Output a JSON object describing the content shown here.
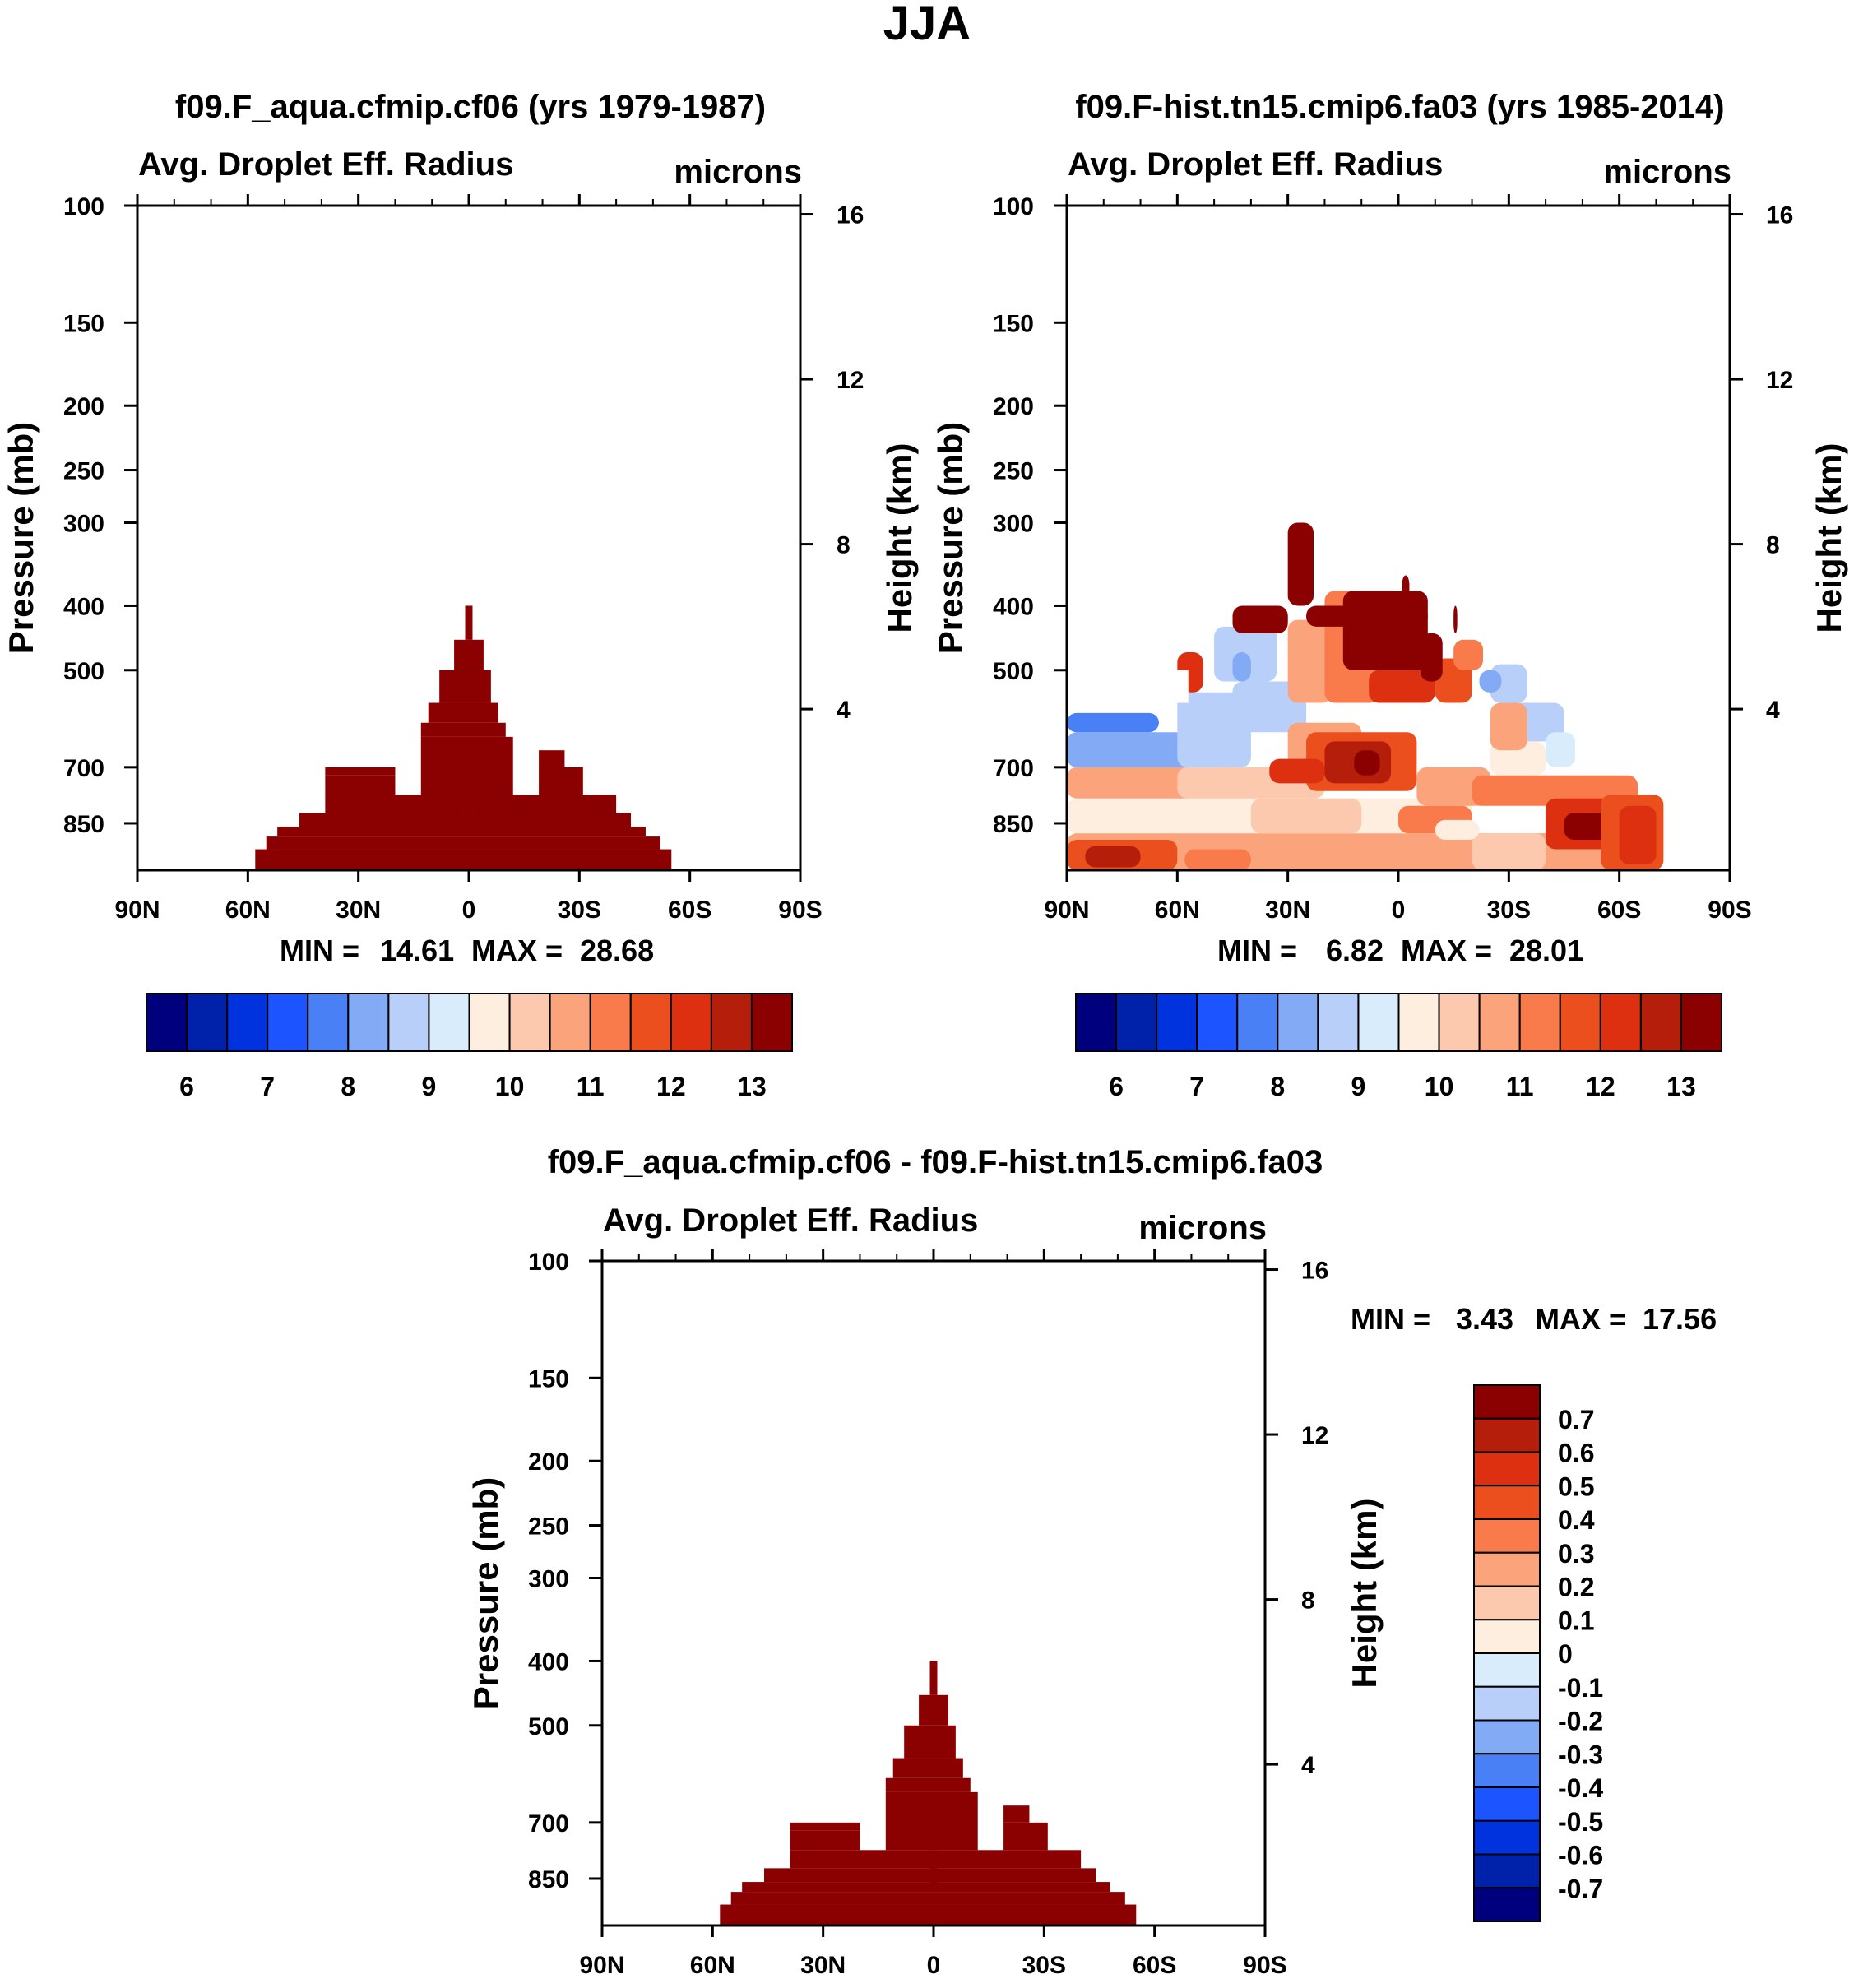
{
  "figure_title": "JJA",
  "colors": {
    "abs_scale": [
      "#00007f",
      "#0022aa",
      "#0033dd",
      "#1c55ff",
      "#4a80f5",
      "#82aaf5",
      "#b8cffa",
      "#d9ecfb",
      "#fdeedf",
      "#fcc9ae",
      "#fba47c",
      "#f97a4a",
      "#ec4f1e",
      "#dd3010",
      "#b51e0a",
      "#8b0000"
    ],
    "diff_scale": [
      "#00007f",
      "#0022aa",
      "#0033dd",
      "#1c55ff",
      "#4a80f5",
      "#82aaf5",
      "#b8cffa",
      "#d9ecfb",
      "#fdeedf",
      "#fcc9ae",
      "#fba47c",
      "#f97a4a",
      "#ec4f1e",
      "#dd3010",
      "#b51e0a",
      "#8b0000"
    ],
    "fill_dark": "#8b0000"
  },
  "chart_data": [
    {
      "id": "panel1",
      "type": "heatmap",
      "title": "f09.F_aqua.cfmip.cf06 (yrs 1979-1987)",
      "left_label": "Avg. Droplet Eff. Radius",
      "right_label": "microns",
      "ylabel": "Pressure (mb)",
      "ylabel_right": "Height (km)",
      "x_ticks": [
        "90N",
        "60N",
        "30N",
        "0",
        "30S",
        "60S",
        "90S"
      ],
      "x_tick_values": [
        90,
        60,
        30,
        0,
        -30,
        -60,
        -90
      ],
      "y_ticks": [
        100,
        150,
        200,
        250,
        300,
        400,
        500,
        700,
        850
      ],
      "y_ticks_right": [
        "16",
        "12",
        "8",
        "4"
      ],
      "y_ticks_right_values": [
        16,
        12,
        8,
        4
      ],
      "ylim": [
        100,
        1000
      ],
      "xlim": [
        90,
        -90
      ],
      "min_label": "MIN =",
      "min_value": "14.61",
      "max_label": "MAX =",
      "max_value": "28.68",
      "colorbar_labels": [
        "6",
        "7",
        "8",
        "9",
        "10",
        "11",
        "12",
        "13"
      ],
      "field_description_value": "filled at top color level (>13)",
      "cells": [
        {
          "lat": [
            58,
            -55
          ],
          "p": [
            930,
            1000
          ]
        },
        {
          "lat": [
            55,
            -52
          ],
          "p": [
            890,
            930
          ]
        },
        {
          "lat": [
            52,
            -48
          ],
          "p": [
            860,
            890
          ]
        },
        {
          "lat": [
            46,
            -44
          ],
          "p": [
            820,
            860
          ]
        },
        {
          "lat": [
            39,
            -40
          ],
          "p": [
            770,
            820
          ]
        },
        {
          "lat": [
            39,
            20
          ],
          "p": [
            720,
            770
          ]
        },
        {
          "lat": [
            39,
            20
          ],
          "p": [
            700,
            720
          ]
        },
        {
          "lat": [
            -19,
            -31
          ],
          "p": [
            700,
            770
          ]
        },
        {
          "lat": [
            -19,
            -26
          ],
          "p": [
            660,
            700
          ]
        },
        {
          "lat": [
            13,
            -12
          ],
          "p": [
            630,
            770
          ]
        },
        {
          "lat": [
            13,
            -10
          ],
          "p": [
            600,
            630
          ]
        },
        {
          "lat": [
            11,
            -8
          ],
          "p": [
            560,
            600
          ]
        },
        {
          "lat": [
            8,
            -6
          ],
          "p": [
            500,
            560
          ]
        },
        {
          "lat": [
            4,
            -4
          ],
          "p": [
            450,
            500
          ]
        },
        {
          "lat": [
            1,
            -1
          ],
          "p": [
            400,
            450
          ]
        },
        {
          "lat": [
            1,
            -1
          ],
          "p": [
            770,
            880
          ]
        }
      ]
    },
    {
      "id": "panel2",
      "type": "heatmap",
      "title": "f09.F-hist.tn15.cmip6.fa03 (yrs 1985-2014)",
      "left_label": "Avg. Droplet Eff. Radius",
      "right_label": "microns",
      "ylabel": "Pressure (mb)",
      "ylabel_right": "Height (km)",
      "x_ticks": [
        "90N",
        "60N",
        "30N",
        "0",
        "30S",
        "60S",
        "90S"
      ],
      "x_tick_values": [
        90,
        60,
        30,
        0,
        -30,
        -60,
        -90
      ],
      "y_ticks": [
        100,
        150,
        200,
        250,
        300,
        400,
        500,
        700,
        850
      ],
      "y_ticks_right": [
        "16",
        "12",
        "8",
        "4"
      ],
      "y_ticks_right_values": [
        16,
        12,
        8,
        4
      ],
      "ylim": [
        100,
        1000
      ],
      "xlim": [
        90,
        -90
      ],
      "min_label": "MIN =",
      "min_value": "6.82",
      "max_label": "MAX =",
      "max_value": "28.01",
      "colorbar_labels": [
        "6",
        "7",
        "8",
        "9",
        "10",
        "11",
        "12",
        "13"
      ]
    },
    {
      "id": "panel3",
      "type": "heatmap",
      "title": "f09.F_aqua.cfmip.cf06 - f09.F-hist.tn15.cmip6.fa03",
      "left_label": "Avg. Droplet Eff. Radius",
      "right_label": "microns",
      "ylabel": "Pressure (mb)",
      "ylabel_right": "Height (km)",
      "x_ticks": [
        "90N",
        "60N",
        "30N",
        "0",
        "30S",
        "60S",
        "90S"
      ],
      "x_tick_values": [
        90,
        60,
        30,
        0,
        -30,
        -60,
        -90
      ],
      "y_ticks": [
        100,
        150,
        200,
        250,
        300,
        400,
        500,
        700,
        850
      ],
      "y_ticks_right": [
        "16",
        "12",
        "8",
        "4"
      ],
      "y_ticks_right_values": [
        16,
        12,
        8,
        4
      ],
      "ylim": [
        100,
        1000
      ],
      "xlim": [
        90,
        -90
      ],
      "min_label": "MIN =",
      "min_value": "3.43",
      "max_label": "MAX =",
      "max_value": "17.56",
      "colorbar_labels": [
        "0.7",
        "0.6",
        "0.5",
        "0.4",
        "0.3",
        "0.2",
        "0.1",
        "0",
        "-0.1",
        "-0.2",
        "-0.3",
        "-0.4",
        "-0.5",
        "-0.6",
        "-0.7"
      ]
    }
  ]
}
